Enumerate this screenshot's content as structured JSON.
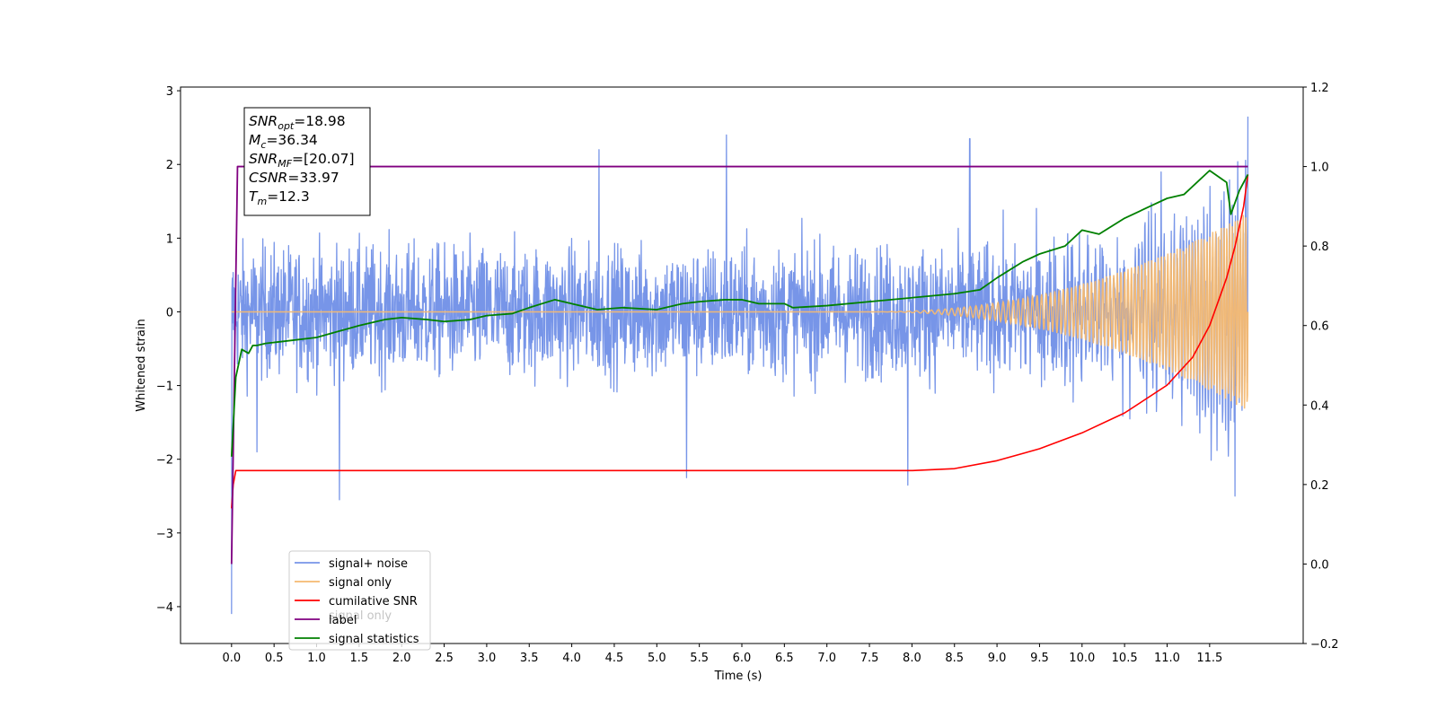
{
  "chart_data": {
    "type": "line",
    "xlabel": "Time (s)",
    "ylabel": "Whitened strain",
    "xlim": [
      -0.6,
      12.6
    ],
    "ylim": [
      -4.5,
      3.05
    ],
    "y2lim": [
      -0.2,
      1.2
    ],
    "x_ticks": [
      "0.0",
      "0.5",
      "1.0",
      "1.5",
      "2.0",
      "2.5",
      "3.0",
      "3.5",
      "4.0",
      "4.5",
      "5.0",
      "5.5",
      "6.0",
      "6.5",
      "7.0",
      "7.5",
      "8.0",
      "8.5",
      "9.0",
      "9.5",
      "10.0",
      "10.5",
      "11.0",
      "11.5"
    ],
    "y_ticks": [
      "−4",
      "−3",
      "−2",
      "−1",
      "0",
      "1",
      "2",
      "3"
    ],
    "y2_ticks": [
      "−0.2",
      "0.0",
      "0.2",
      "0.4",
      "0.6",
      "0.8",
      "1.0",
      "1.2"
    ],
    "legend_placement": "lower-left",
    "legend": [
      {
        "label": "signal+ noise",
        "color": "#7795e8"
      },
      {
        "label": "signal only",
        "color": "#f5b971"
      },
      {
        "label": "cumilative SNR",
        "color": "#ff0000"
      },
      {
        "label": "label",
        "color": "#800080"
      },
      {
        "label": "signal statistics",
        "color": "#008000"
      }
    ],
    "legend_ghost_label": "signal only",
    "annotation": [
      {
        "base": "SNR",
        "sub": "opt",
        "rest": "=18.98"
      },
      {
        "base": "M",
        "sub": "c",
        "rest": "=36.34"
      },
      {
        "base": "SNR",
        "sub": "MF",
        "rest": "=[20.07]"
      },
      {
        "base": "CSNR",
        "sub": "",
        "rest": "=33.97"
      },
      {
        "base": "T",
        "sub": "m",
        "rest": "=12.3"
      }
    ],
    "series": [
      {
        "key": "noise",
        "axis": "left",
        "envelope_x": [
          0.0,
          1.0,
          2.0,
          3.0,
          4.0,
          5.0,
          6.0,
          7.0,
          8.0,
          9.0,
          10.0,
          10.5,
          11.0,
          11.5,
          11.9
        ],
        "envelope_amp": [
          1.15,
          1.15,
          1.15,
          1.15,
          1.15,
          1.15,
          1.15,
          1.15,
          1.15,
          1.18,
          1.22,
          1.25,
          1.3,
          1.38,
          1.5
        ],
        "spikes": [
          [
            0.0,
            -4.1
          ],
          [
            0.3,
            -1.9
          ],
          [
            1.27,
            -2.55
          ],
          [
            4.32,
            2.2
          ],
          [
            5.35,
            -2.25
          ],
          [
            5.82,
            2.4
          ],
          [
            7.95,
            -2.35
          ],
          [
            8.68,
            2.35
          ],
          [
            11.8,
            -2.5
          ],
          [
            11.95,
            2.7
          ]
        ]
      },
      {
        "key": "signal",
        "axis": "left",
        "onset": 7.5,
        "end": 11.95,
        "amp_end": 1.35
      },
      {
        "key": "csnr",
        "axis": "right",
        "x": [
          0.0,
          0.02,
          0.05,
          2.0,
          4.0,
          6.0,
          7.5,
          8.0,
          8.5,
          9.0,
          9.5,
          10.0,
          10.5,
          11.0,
          11.3,
          11.5,
          11.7,
          11.8,
          11.9,
          11.95
        ],
        "y": [
          0.14,
          0.2,
          0.235,
          0.235,
          0.235,
          0.235,
          0.235,
          0.235,
          0.24,
          0.26,
          0.29,
          0.33,
          0.38,
          0.45,
          0.52,
          0.6,
          0.72,
          0.8,
          0.9,
          0.98
        ]
      },
      {
        "key": "label",
        "axis": "right",
        "x": [
          0.0,
          0.07,
          11.95
        ],
        "y": [
          0.0,
          1.0,
          1.0
        ]
      },
      {
        "key": "stats",
        "axis": "right",
        "x": [
          0.0,
          0.05,
          0.12,
          0.2,
          0.25,
          0.3,
          0.4,
          0.6,
          1.0,
          1.5,
          1.8,
          2.0,
          2.3,
          2.5,
          2.8,
          3.0,
          3.3,
          3.5,
          3.8,
          4.0,
          4.3,
          4.6,
          5.0,
          5.3,
          5.5,
          5.8,
          6.0,
          6.2,
          6.5,
          6.6,
          7.0,
          7.5,
          8.0,
          8.5,
          8.8,
          9.0,
          9.3,
          9.5,
          9.8,
          10.0,
          10.2,
          10.5,
          10.8,
          11.0,
          11.2,
          11.5,
          11.7,
          11.75,
          11.85,
          11.95
        ],
        "y": [
          0.27,
          0.47,
          0.54,
          0.53,
          0.55,
          0.55,
          0.555,
          0.56,
          0.57,
          0.6,
          0.615,
          0.62,
          0.615,
          0.61,
          0.615,
          0.625,
          0.63,
          0.645,
          0.665,
          0.655,
          0.64,
          0.645,
          0.64,
          0.655,
          0.66,
          0.665,
          0.665,
          0.655,
          0.655,
          0.645,
          0.65,
          0.66,
          0.67,
          0.68,
          0.69,
          0.72,
          0.76,
          0.78,
          0.8,
          0.84,
          0.83,
          0.87,
          0.9,
          0.92,
          0.93,
          0.99,
          0.96,
          0.88,
          0.94,
          0.98
        ]
      }
    ]
  }
}
